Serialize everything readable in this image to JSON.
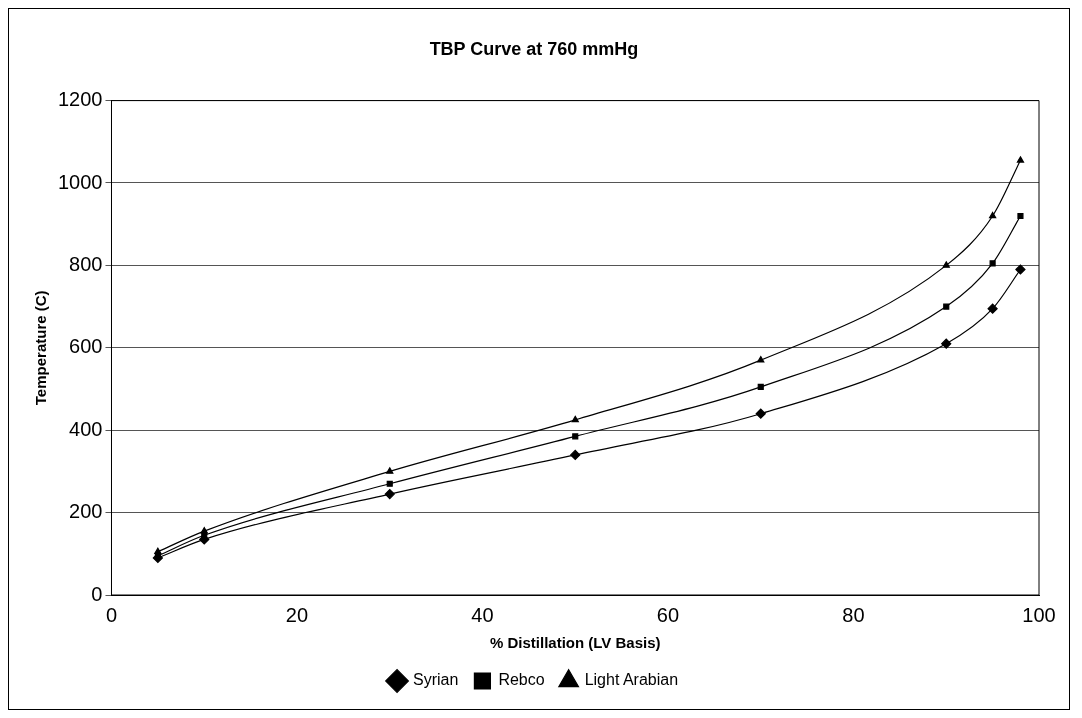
{
  "chart_data": {
    "type": "line",
    "title": "TBP Curve at 760 mmHg",
    "xlabel": "% Distillation (LV Basis)",
    "ylabel": "Temperature (C)",
    "x": [
      5,
      10,
      30,
      50,
      70,
      90,
      95,
      98
    ],
    "series": [
      {
        "name": "Syrian",
        "color": "#000000",
        "marker": "diamond",
        "values": [
          90,
          135,
          245,
          340,
          440,
          610,
          695,
          790
        ]
      },
      {
        "name": "Rebco",
        "color": "#000000",
        "marker": "square",
        "values": [
          95,
          145,
          270,
          385,
          505,
          700,
          805,
          920
        ]
      },
      {
        "name": "Light Arabian",
        "color": "#000000",
        "marker": "triangle",
        "values": [
          105,
          155,
          300,
          425,
          570,
          800,
          920,
          1055
        ]
      }
    ],
    "xlim": [
      0,
      100
    ],
    "xticks": [
      0,
      20,
      40,
      60,
      80,
      100
    ],
    "ylim": [
      0,
      1200
    ],
    "yticks": [
      0,
      200,
      400,
      600,
      800,
      1000,
      1200
    ],
    "grid": "y",
    "legend": "bottom",
    "line_style": "solid"
  }
}
